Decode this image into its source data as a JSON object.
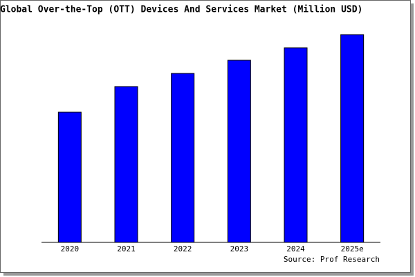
{
  "chart_data": {
    "type": "bar",
    "title": "Global Over-the-Top (OTT) Devices And Services Market (Million USD)",
    "categories": [
      "2020",
      "2021",
      "2022",
      "2023",
      "2024",
      "2025e"
    ],
    "values": [
      188,
      225,
      244,
      263,
      281,
      300
    ],
    "color": "#0000ff",
    "ylim": [
      0,
      300
    ],
    "source": "Source: Prof Research"
  }
}
